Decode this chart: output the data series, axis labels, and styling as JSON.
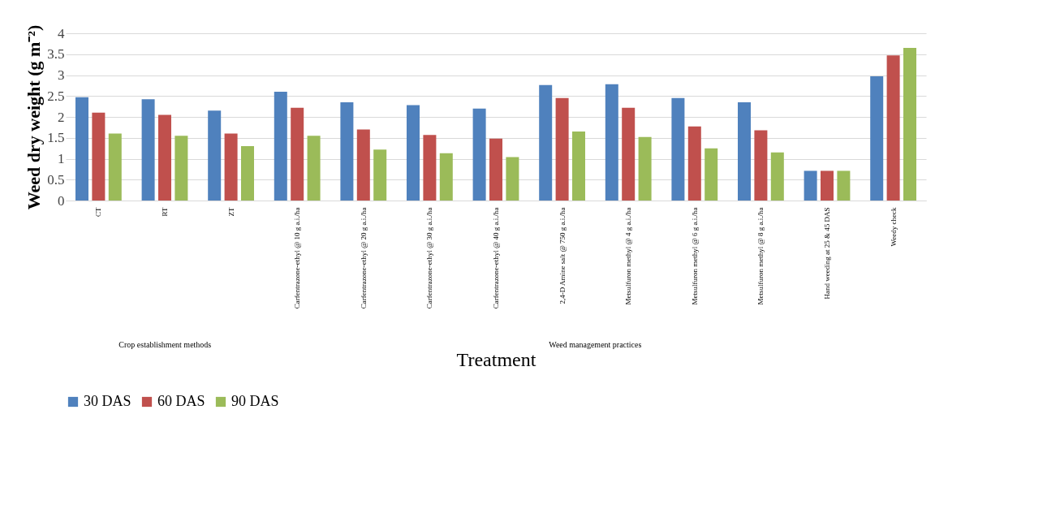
{
  "chart_data": {
    "type": "bar",
    "categories": [
      "CT",
      "RT",
      "ZT",
      "Carfentrazone-ethyl  @ 10 g a.i./ha",
      "Carfentrazone-ethyl  @ 20 g a.i./ha",
      "Carfentrazone-ethyl  @ 30 g a.i./ha",
      "Carfentrazone-ethyl  @ 40 g a.i./ha",
      "2,4-D Amine salt @ 750 g a.i./ha",
      "Metsulfuron methyl @ 4 g a.i./ha",
      "Metsulfuron methyl @ 6 g a.i./ha",
      "Metsulfuron methyl @ 8 g a.i./ha",
      "Hand weeding at 25 & 45 DAS",
      "Weedy check"
    ],
    "series": [
      {
        "name": "30 DAS",
        "color": "#4f81bd",
        "values": [
          2.47,
          2.42,
          2.15,
          2.6,
          2.35,
          2.28,
          2.2,
          2.76,
          2.78,
          2.45,
          2.35,
          0.71,
          2.97
        ]
      },
      {
        "name": "60 DAS",
        "color": "#c0504d",
        "values": [
          2.1,
          2.05,
          1.6,
          2.22,
          1.7,
          1.57,
          1.48,
          2.45,
          2.22,
          1.77,
          1.68,
          0.71,
          3.47
        ]
      },
      {
        "name": "90 DAS",
        "color": "#9bbb59",
        "values": [
          1.6,
          1.55,
          1.3,
          1.55,
          1.22,
          1.13,
          1.04,
          1.65,
          1.52,
          1.25,
          1.15,
          0.71,
          3.65
        ]
      }
    ],
    "xlabel": "Treatment",
    "ylabel": "Weed dry weight (g m⁻²)",
    "ylim": [
      0,
      4
    ],
    "yticks": [
      0,
      0.5,
      1,
      1.5,
      2,
      2.5,
      3,
      3.5,
      4
    ],
    "grid": "y",
    "legend": "bottom",
    "annotations": [
      "Crop establishment  methods",
      "Weed management  practices"
    ]
  }
}
